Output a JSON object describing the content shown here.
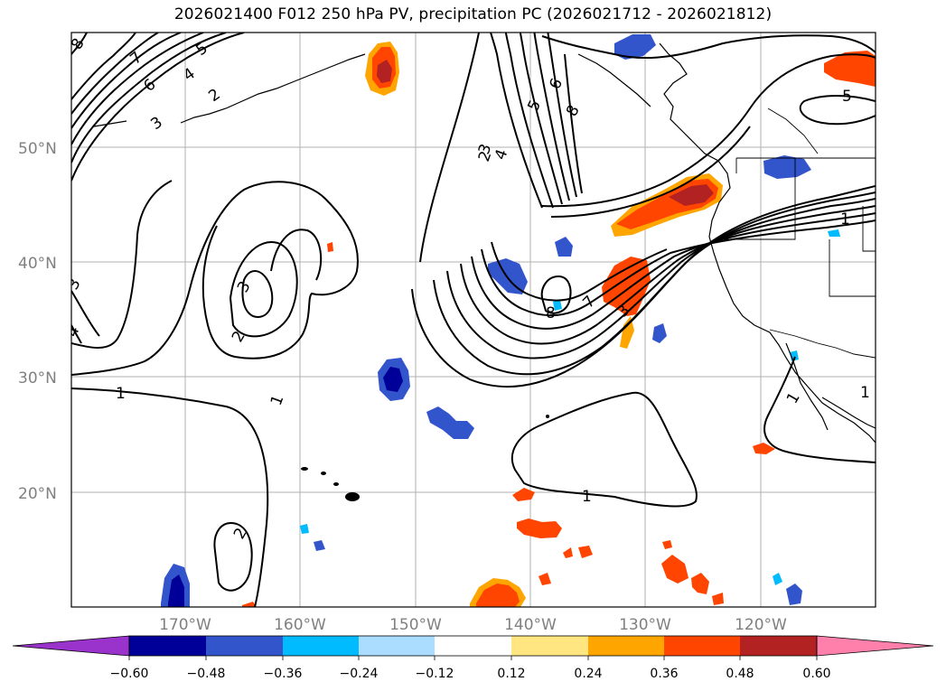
{
  "title": "2026021400 F012 250 hPa PV, precipitation PC (2026021712 - 2026021812)",
  "lat_labels": [
    "50°N",
    "40°N",
    "30°N",
    "20°N"
  ],
  "lon_labels": [
    "170°W",
    "160°W",
    "150°W",
    "140°W",
    "130°W",
    "120°W"
  ],
  "colorbar": {
    "ticks": [
      "−0.60",
      "−0.48",
      "−0.36",
      "−0.24",
      "−0.12",
      "0.12",
      "0.24",
      "0.36",
      "0.48",
      "0.60"
    ],
    "colors": [
      "#9933cc",
      "#000099",
      "#3355cc",
      "#00bbff",
      "#aaddff",
      "#ffffff",
      "#ffe680",
      "#ffa500",
      "#ff4500",
      "#b22222",
      "#ff80aa"
    ]
  },
  "contour_labels": [
    "8",
    "7",
    "6",
    "5",
    "4",
    "3",
    "2",
    "3",
    "3",
    "2",
    "1",
    "1",
    "2",
    "4",
    "3",
    "2",
    "4",
    "5",
    "6",
    "8",
    "7",
    "8",
    "3",
    "1",
    "1",
    "5",
    "1",
    "1"
  ]
}
